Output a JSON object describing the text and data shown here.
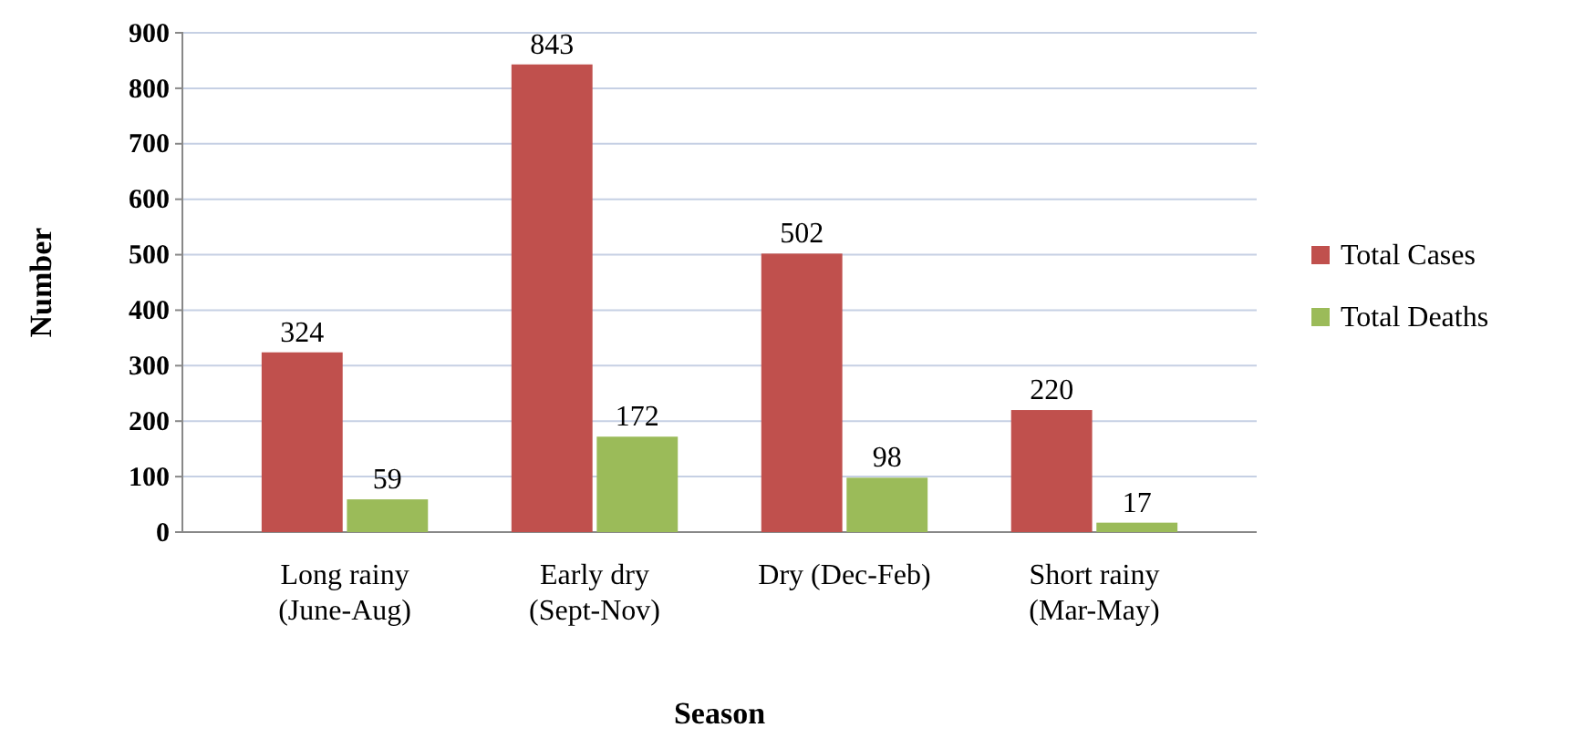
{
  "chart_data": {
    "type": "bar",
    "categories": [
      "Long rainy (June-Aug)",
      "Early dry (Sept-Nov)",
      "Dry (Dec-Feb)",
      "Short rainy (Mar-May)"
    ],
    "series": [
      {
        "name": "Total Cases",
        "color": "#c0504d",
        "values": [
          324,
          843,
          502,
          220
        ]
      },
      {
        "name": "Total Deaths",
        "color": "#9bbb59",
        "values": [
          59,
          172,
          98,
          17
        ]
      }
    ],
    "xlabel": "Season",
    "ylabel": "Number",
    "ylim": [
      0,
      900
    ],
    "yticks": [
      0,
      100,
      200,
      300,
      400,
      500,
      600,
      700,
      800,
      900
    ],
    "grid": "y",
    "legend": "right",
    "data_labels": true
  }
}
